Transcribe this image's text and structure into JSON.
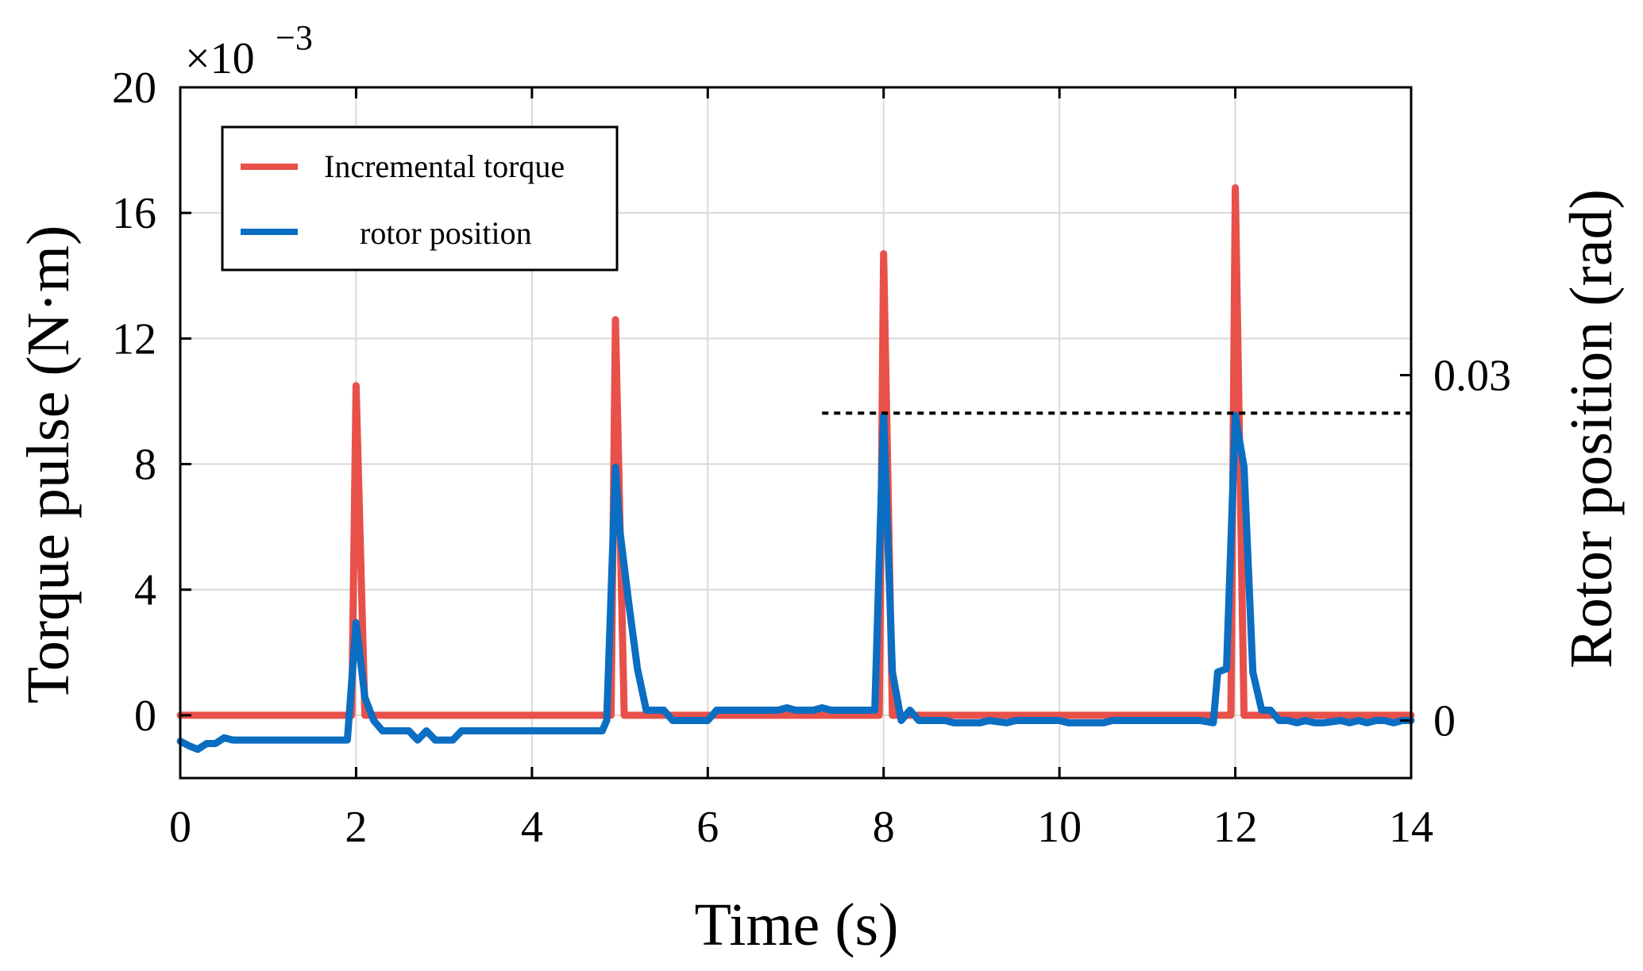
{
  "chart_data": {
    "type": "line",
    "title": "",
    "xlabel": "Time (s)",
    "ylabel_left": "Torque pulse (N·m)",
    "ylabel_right": "Rotor position (rad)",
    "left_axis_exponent": {
      "base": "×10",
      "exponent": "−3"
    },
    "xlim": [
      0,
      14
    ],
    "ylim_left": [
      -2,
      20
    ],
    "ylim_right": [
      -0.005,
      0.055
    ],
    "x_ticks": [
      0,
      2,
      4,
      6,
      8,
      10,
      12,
      14
    ],
    "x_tick_labels": [
      "0",
      "2",
      "4",
      "6",
      "8",
      "10",
      "12",
      "14"
    ],
    "y_left_ticks": [
      0,
      4,
      8,
      12,
      16,
      20
    ],
    "y_left_tick_labels": [
      "0",
      "4",
      "8",
      "12",
      "16",
      "20"
    ],
    "y_right_ticks": [
      0,
      0.03
    ],
    "y_right_tick_labels": [
      "0",
      "0.03"
    ],
    "grid": true,
    "legend": {
      "position": "top-left",
      "boxed": true
    },
    "reference_line": {
      "style": "dotted",
      "color": "#000000",
      "y_right": 0.0267,
      "x_start": 7.3,
      "x_end": 14
    },
    "series": [
      {
        "name": "Incremental torque",
        "axis": "left",
        "color": "#e8504a",
        "x": [
          0,
          1.95,
          2.0,
          2.1,
          4.9,
          4.95,
          5.05,
          7.95,
          8.0,
          8.1,
          11.95,
          12.0,
          12.1,
          14
        ],
        "y": [
          0,
          0,
          10.5,
          0,
          0,
          12.6,
          0,
          0,
          14.7,
          0,
          0,
          16.8,
          0,
          0
        ]
      },
      {
        "name": "rotor position",
        "axis": "right",
        "color": "#0a6ec2",
        "x": [
          0,
          0.1,
          0.2,
          0.3,
          0.4,
          0.5,
          0.6,
          1.9,
          2.0,
          2.1,
          2.2,
          2.3,
          2.5,
          2.6,
          2.7,
          2.8,
          2.9,
          3.0,
          3.1,
          3.2,
          3.3,
          4.8,
          4.85,
          4.95,
          5.0,
          5.1,
          5.2,
          5.3,
          5.4,
          5.5,
          5.6,
          6.0,
          6.1,
          6.8,
          6.9,
          7.0,
          7.2,
          7.3,
          7.4,
          7.9,
          8.0,
          8.1,
          8.2,
          8.3,
          8.4,
          8.7,
          8.8,
          9.1,
          9.2,
          9.4,
          9.5,
          10.0,
          10.1,
          10.5,
          10.6,
          11.5,
          11.6,
          11.75,
          11.8,
          11.9,
          12.0,
          12.1,
          12.2,
          12.3,
          12.4,
          12.5,
          12.6,
          12.7,
          12.8,
          12.9,
          13.0,
          13.2,
          13.3,
          13.4,
          13.5,
          13.6,
          13.7,
          13.8,
          13.9,
          14.0
        ],
        "y": [
          -0.0018,
          -0.0022,
          -0.0025,
          -0.002,
          -0.002,
          -0.0015,
          -0.0017,
          -0.0017,
          0.0085,
          0.002,
          0.0,
          -0.0009,
          -0.0009,
          -0.0009,
          -0.0017,
          -0.0009,
          -0.0017,
          -0.0017,
          -0.0017,
          -0.0009,
          -0.0009,
          -0.0009,
          0.0,
          0.022,
          0.0165,
          0.0103,
          0.0045,
          0.0009,
          0.0009,
          0.0009,
          0.0,
          0.0,
          0.0009,
          0.0009,
          0.0011,
          0.0009,
          0.0009,
          0.0011,
          0.0009,
          0.0009,
          0.0265,
          0.0042,
          0.0,
          0.0009,
          0.0,
          0.0,
          -0.0002,
          -0.0002,
          0.0,
          -0.0002,
          0.0,
          0.0,
          -0.0002,
          -0.0002,
          0.0,
          0.0,
          0.0,
          -0.0002,
          0.0042,
          0.0045,
          0.0265,
          0.022,
          0.0042,
          0.0009,
          0.0009,
          0.0,
          0.0,
          -0.0002,
          0.0,
          -0.0002,
          -0.0002,
          0.0,
          -0.0002,
          0.0,
          -0.0002,
          0.0,
          0.0,
          -0.0002,
          0.0,
          0.0
        ]
      }
    ]
  }
}
